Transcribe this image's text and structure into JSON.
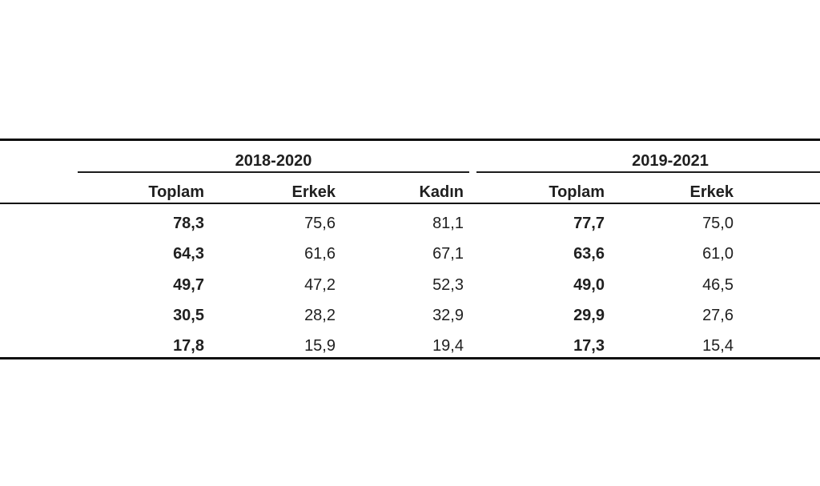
{
  "page": {
    "background_color": "#ffffff",
    "text_color": "#1f1f1f",
    "rule_color": "#0d0d0d"
  },
  "table": {
    "column_groups": [
      {
        "label": "2018-2020",
        "sub_columns": [
          "Toplam",
          "Erkek",
          "Kadın"
        ]
      },
      {
        "label": "2019-2021",
        "sub_columns": [
          "Toplam",
          "Erkek"
        ]
      }
    ],
    "sub_headers": [
      "Toplam",
      "Erkek",
      "Kadın",
      "Toplam",
      "Erkek"
    ],
    "rows": [
      {
        "values": [
          "78,3",
          "75,6",
          "81,1",
          "77,7",
          "75,0"
        ]
      },
      {
        "values": [
          "64,3",
          "61,6",
          "67,1",
          "63,6",
          "61,0"
        ]
      },
      {
        "values": [
          "49,7",
          "47,2",
          "52,3",
          "49,0",
          "46,5"
        ]
      },
      {
        "values": [
          "30,5",
          "28,2",
          "32,9",
          "29,9",
          "27,6"
        ]
      },
      {
        "values": [
          "17,8",
          "15,9",
          "19,4",
          "17,3",
          "15,4"
        ]
      }
    ]
  },
  "chart_data": {
    "type": "table",
    "column_groups": [
      "2018-2020",
      "2019-2021"
    ],
    "columns": [
      "Toplam (2018-2020)",
      "Erkek (2018-2020)",
      "Kadın (2018-2020)",
      "Toplam (2019-2021)",
      "Erkek (2019-2021)"
    ],
    "rows_display": [
      [
        "78,3",
        "75,6",
        "81,1",
        "77,7",
        "75,0"
      ],
      [
        "64,3",
        "61,6",
        "67,1",
        "63,6",
        "61,0"
      ],
      [
        "49,7",
        "47,2",
        "52,3",
        "49,0",
        "46,5"
      ],
      [
        "30,5",
        "28,2",
        "32,9",
        "29,9",
        "27,6"
      ],
      [
        "17,8",
        "15,9",
        "19,4",
        "17,3",
        "15,4"
      ]
    ],
    "rows_numeric": [
      [
        78.3,
        75.6,
        81.1,
        77.7,
        75.0
      ],
      [
        64.3,
        61.6,
        67.1,
        63.6,
        61.0
      ],
      [
        49.7,
        47.2,
        52.3,
        49.0,
        46.5
      ],
      [
        30.5,
        28.2,
        32.9,
        29.9,
        27.6
      ],
      [
        17.8,
        15.9,
        19.4,
        17.3,
        15.4
      ]
    ],
    "layout_hints": {
      "decimal_separator": "comma",
      "numeric_columns_alignment": "right",
      "bold_columns": [
        "Toplam (2018-2020)",
        "Toplam (2019-2021)"
      ],
      "row_label_column_visible": false,
      "rightmost_group_cropped_at_right_edge": true,
      "grid": "horizontal rules only: thick top and bottom borders, group underlines, header divider"
    }
  }
}
